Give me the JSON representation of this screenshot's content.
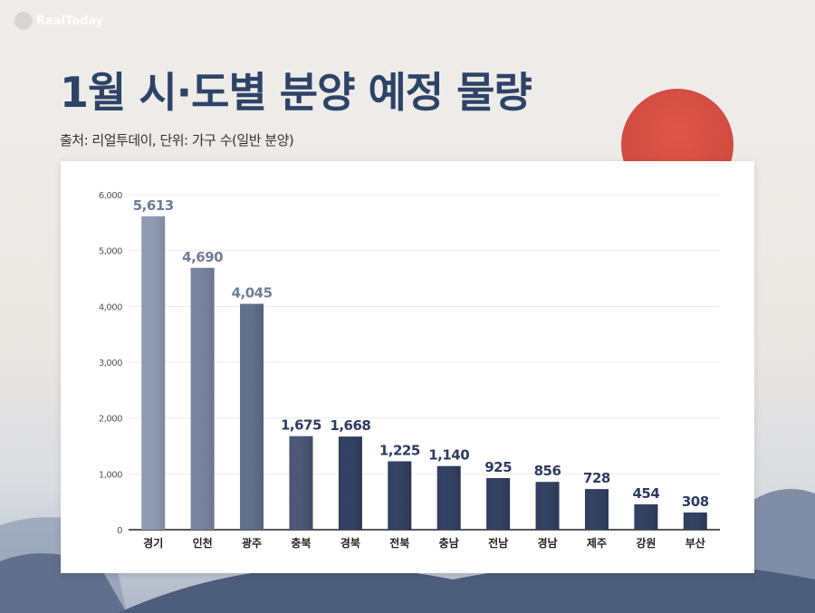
{
  "logo": {
    "text": "RealToday"
  },
  "header": {
    "title": "1월 시·도별 분양 예정 물량",
    "subtitle": "출처: 리얼투데이, 단위: 가구 수(일반 분양)"
  },
  "colors": {
    "title": "#2d4368",
    "bar_light": "#8f9bb5",
    "bar_dark": "#2f3e60",
    "sun": "#d24e43"
  },
  "chart_data": {
    "type": "bar",
    "title": "",
    "xlabel": "",
    "ylabel": "",
    "ylim": [
      0,
      6000
    ],
    "yticks": [
      0,
      1000,
      2000,
      3000,
      4000,
      5000,
      6000
    ],
    "ytick_labels": [
      "0",
      "1,000",
      "2,000",
      "3,000",
      "4,000",
      "5,000",
      "6,000"
    ],
    "grid": true,
    "categories": [
      "경기",
      "인천",
      "광주",
      "충북",
      "경북",
      "전북",
      "충남",
      "전남",
      "경남",
      "제주",
      "강원",
      "부산"
    ],
    "values": [
      5613,
      4690,
      4045,
      1675,
      1668,
      1225,
      1140,
      925,
      856,
      728,
      454,
      308
    ],
    "value_labels": [
      "5,613",
      "4,690",
      "4,045",
      "1,675",
      "1,668",
      "1,225",
      "1,140",
      "925",
      "856",
      "728",
      "454",
      "308"
    ]
  }
}
